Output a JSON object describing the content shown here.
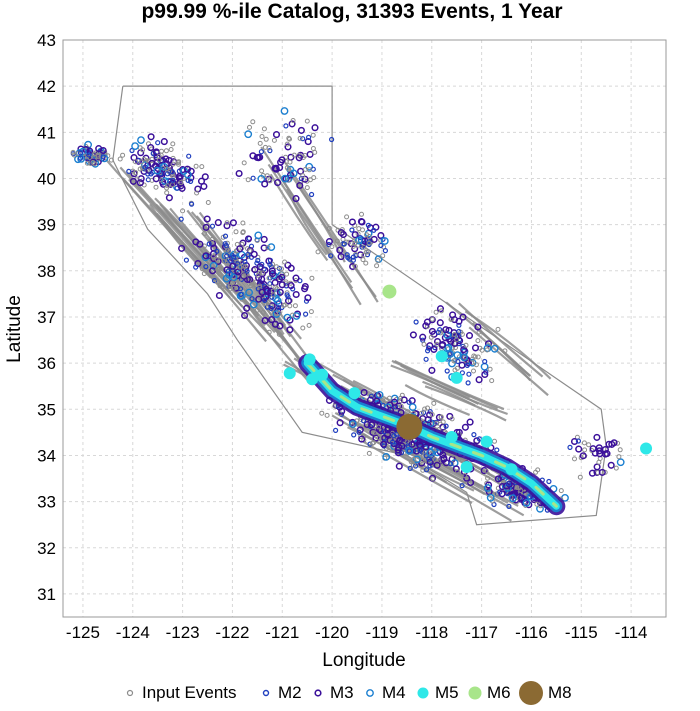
{
  "chart_data": {
    "type": "scatter",
    "title": "p99.99 %-ile Catalog, 31393 Events, 1 Year",
    "xlabel": "Longitude",
    "ylabel": "Latitude",
    "xlim": [
      -125.4,
      -113.3
    ],
    "ylim": [
      30.5,
      43.0
    ],
    "xticks": [
      -125,
      -124,
      -123,
      -122,
      -121,
      -120,
      -119,
      -118,
      -117,
      -116,
      -115,
      -114
    ],
    "yticks": [
      31,
      32,
      33,
      34,
      35,
      36,
      37,
      38,
      39,
      40,
      41,
      42,
      43
    ],
    "grid": true,
    "legend_position": "bottom",
    "legend": [
      "Input Events",
      "M2",
      "M3",
      "M4",
      "M5",
      "M6",
      "M8"
    ],
    "colors": {
      "input_events": "#8c8c8c",
      "faults": "#8c8c8c",
      "state_border": "#8c8c8c",
      "M2": "#1f3fbf",
      "M3": "#3b109a",
      "M4": "#1b7fd0",
      "M5": "#2ee8e8",
      "M6": "#a8e58a",
      "M8": "#8b6a33"
    },
    "series": [
      {
        "name": "M8",
        "points": [
          [
            -118.45,
            34.62
          ]
        ]
      },
      {
        "name": "M6",
        "points": [
          [
            -118.85,
            37.55
          ]
        ]
      },
      {
        "name": "M5",
        "points": [
          [
            -120.45,
            36.08
          ],
          [
            -120.85,
            35.78
          ],
          [
            -120.4,
            35.65
          ],
          [
            -120.2,
            35.75
          ],
          [
            -117.8,
            36.15
          ],
          [
            -117.5,
            35.68
          ],
          [
            -117.3,
            33.75
          ],
          [
            -116.9,
            34.3
          ],
          [
            -116.4,
            33.7
          ],
          [
            -113.7,
            34.15
          ],
          [
            -119.55,
            35.35
          ],
          [
            -117.6,
            34.4
          ]
        ]
      }
    ],
    "fault_trace": [
      [
        -120.5,
        36.0
      ],
      [
        -120.0,
        35.4
      ],
      [
        -119.5,
        35.05
      ],
      [
        -119.0,
        34.85
      ],
      [
        -118.5,
        34.65
      ],
      [
        -118.0,
        34.4
      ],
      [
        -117.5,
        34.2
      ],
      [
        -117.0,
        34.0
      ],
      [
        -116.5,
        33.75
      ],
      [
        -116.0,
        33.4
      ],
      [
        -115.7,
        33.1
      ],
      [
        -115.5,
        32.9
      ]
    ]
  }
}
